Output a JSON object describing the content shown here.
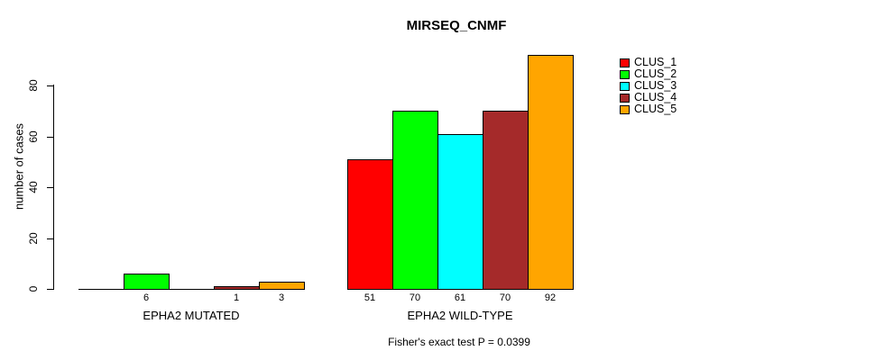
{
  "chart_data": {
    "type": "bar",
    "title": "MIRSEQ_CNMF",
    "ylabel": "number of cases",
    "footer": "Fisher's exact test P = 0.0399",
    "yticks": [
      0,
      20,
      40,
      60,
      80
    ],
    "ylim": [
      0,
      96
    ],
    "grid": false,
    "legend_position": "right",
    "categories": [
      "EPHA2 MUTATED",
      "EPHA2 WILD-TYPE"
    ],
    "series": [
      {
        "name": "CLUS_1",
        "color": "#FF0000",
        "values": [
          0,
          51
        ]
      },
      {
        "name": "CLUS_2",
        "color": "#00FF00",
        "values": [
          6,
          70
        ]
      },
      {
        "name": "CLUS_3",
        "color": "#00FFFF",
        "values": [
          0,
          61
        ]
      },
      {
        "name": "CLUS_4",
        "color": "#A52A2A",
        "values": [
          1,
          70
        ]
      },
      {
        "name": "CLUS_5",
        "color": "#FFA500",
        "values": [
          3,
          92
        ]
      }
    ],
    "bar_labels": [
      [
        "",
        "6",
        "",
        "1",
        "3"
      ],
      [
        "51",
        "70",
        "61",
        "70",
        "92"
      ]
    ]
  }
}
